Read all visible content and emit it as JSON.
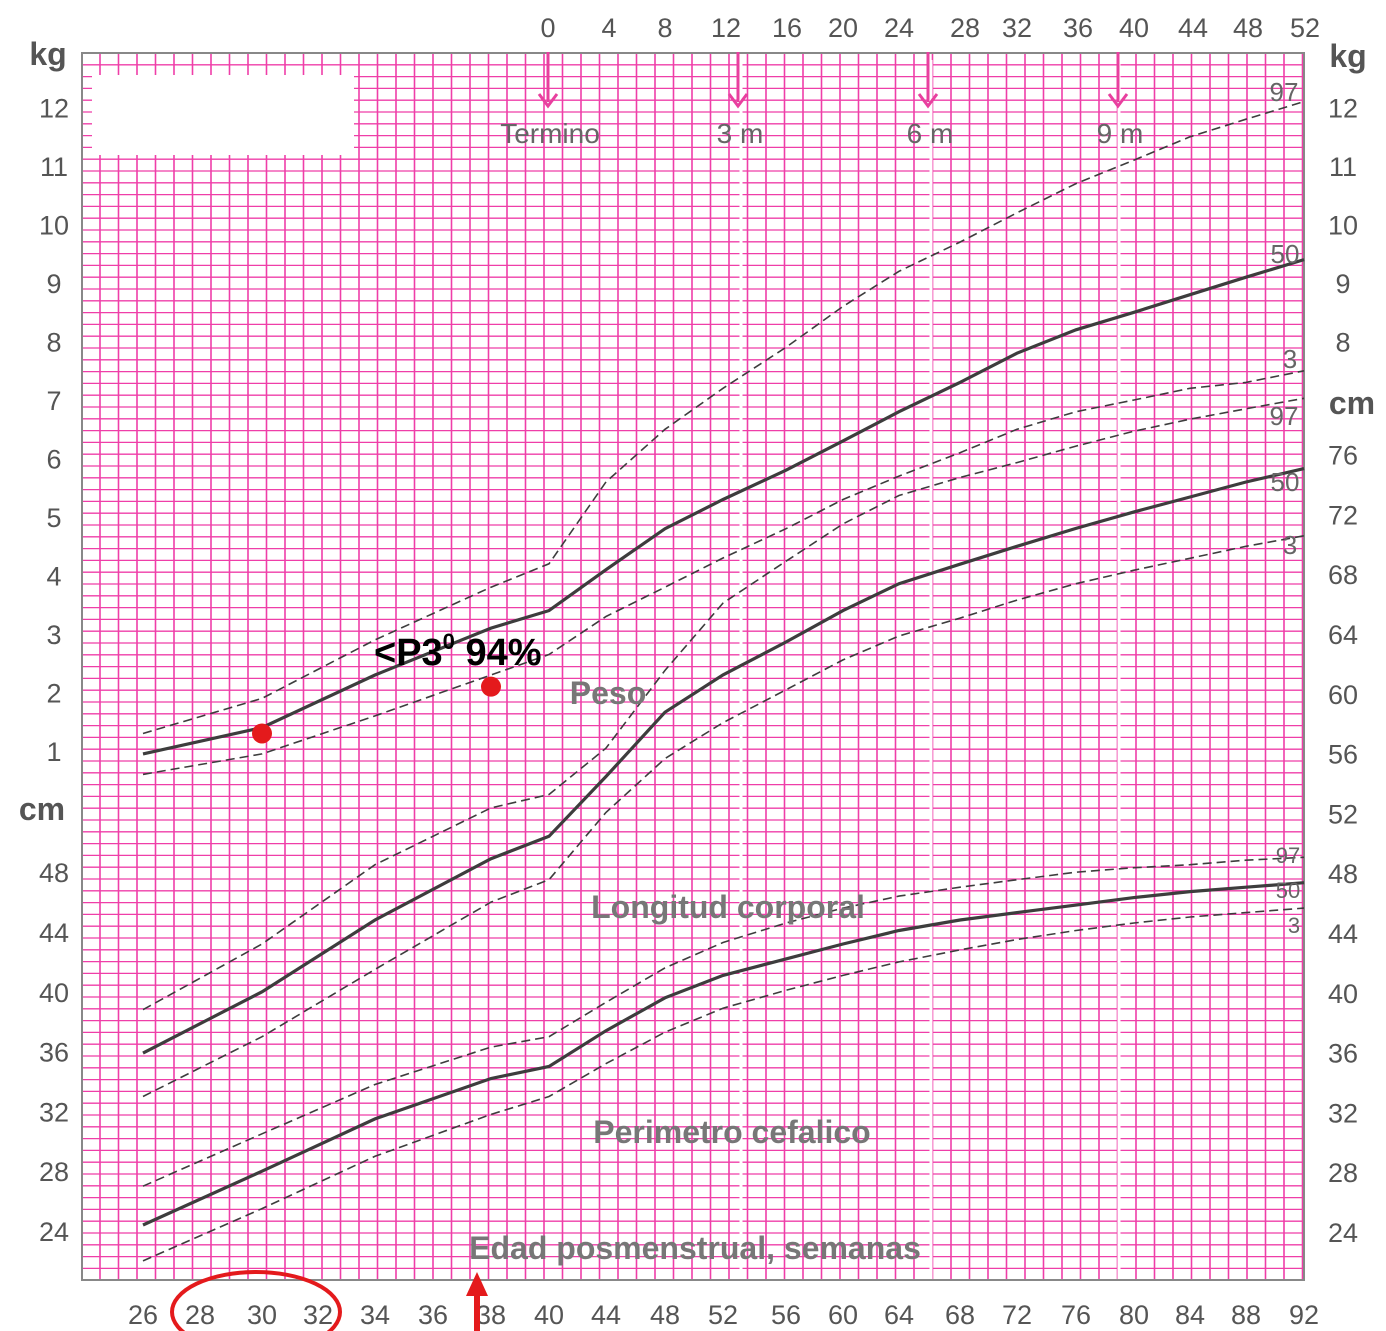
{
  "chart_data": {
    "type": "line",
    "chart_kind": "Fenton-style preterm growth chart",
    "xlabel": "Edad  posmenstrual, semanas",
    "x_ticks_bottom": [
      "26",
      "28",
      "30",
      "32",
      "34",
      "36",
      "38",
      "40",
      "44",
      "48",
      "52",
      "56",
      "60",
      "64",
      "68",
      "72",
      "76",
      "80",
      "84",
      "88",
      "92"
    ],
    "x_ticks_top": [
      "0",
      "4",
      "8",
      "12",
      "16",
      "20",
      "24",
      "28",
      "32",
      "36",
      "40",
      "44",
      "48",
      "52"
    ],
    "age_markers": [
      "Termino",
      "3 m",
      "6 m",
      "9 m"
    ],
    "y_unit_labels": {
      "kg_left": "kg",
      "kg_right": "kg",
      "cm_left": "cm",
      "cm_right": "cm"
    },
    "kg_ticks_left": [
      "1",
      "2",
      "3",
      "4",
      "5",
      "6",
      "7",
      "8",
      "9",
      "10",
      "11",
      "12"
    ],
    "kg_ticks_right": [
      "8",
      "9",
      "10",
      "11",
      "12"
    ],
    "cm_ticks_left": [
      "24",
      "28",
      "32",
      "36",
      "40",
      "44",
      "48"
    ],
    "cm_ticks_right": [
      "24",
      "28",
      "32",
      "36",
      "40",
      "44",
      "48",
      "52",
      "56",
      "60",
      "64",
      "68",
      "72",
      "76"
    ],
    "section_labels": [
      "Peso",
      "Longitud corporal",
      "Perimetro cefalico"
    ],
    "percentile_labels": {
      "weight": [
        "97",
        "50",
        "3"
      ],
      "length": [
        "97",
        "50",
        "3"
      ],
      "head": [
        "97",
        "50",
        "3"
      ]
    },
    "annotation": {
      "prefix": "<P3",
      "sup": "0",
      "suffix": " 94%"
    },
    "series": [
      {
        "group": "weight",
        "percentile": "97",
        "style": "dashed",
        "unit": "kg",
        "points": [
          [
            26,
            1.3
          ],
          [
            30,
            1.9
          ],
          [
            34,
            2.9
          ],
          [
            38,
            3.8
          ],
          [
            40,
            4.2
          ],
          [
            44,
            5.6
          ],
          [
            48,
            6.5
          ],
          [
            52,
            7.2
          ],
          [
            56,
            7.9
          ],
          [
            60,
            8.6
          ],
          [
            64,
            9.2
          ],
          [
            68,
            9.7
          ],
          [
            72,
            10.2
          ],
          [
            76,
            10.7
          ],
          [
            80,
            11.1
          ],
          [
            84,
            11.5
          ],
          [
            88,
            11.8
          ],
          [
            92,
            12.1
          ]
        ]
      },
      {
        "group": "weight",
        "percentile": "50",
        "style": "solid",
        "unit": "kg",
        "points": [
          [
            26,
            0.95
          ],
          [
            30,
            1.4
          ],
          [
            34,
            2.3
          ],
          [
            38,
            3.1
          ],
          [
            40,
            3.4
          ],
          [
            44,
            4.1
          ],
          [
            48,
            4.8
          ],
          [
            52,
            5.3
          ],
          [
            56,
            5.8
          ],
          [
            60,
            6.3
          ],
          [
            64,
            6.8
          ],
          [
            68,
            7.3
          ],
          [
            72,
            7.8
          ],
          [
            76,
            8.2
          ],
          [
            80,
            8.5
          ],
          [
            84,
            8.8
          ],
          [
            88,
            9.1
          ],
          [
            92,
            9.4
          ]
        ]
      },
      {
        "group": "weight",
        "percentile": "3",
        "style": "dashed",
        "unit": "kg",
        "points": [
          [
            26,
            0.6
          ],
          [
            30,
            0.95
          ],
          [
            34,
            1.6
          ],
          [
            38,
            2.3
          ],
          [
            40,
            2.65
          ],
          [
            44,
            3.3
          ],
          [
            48,
            3.8
          ],
          [
            52,
            4.3
          ],
          [
            56,
            4.8
          ],
          [
            60,
            5.3
          ],
          [
            64,
            5.7
          ],
          [
            68,
            6.1
          ],
          [
            72,
            6.5
          ],
          [
            76,
            6.8
          ],
          [
            80,
            7.0
          ],
          [
            84,
            7.2
          ],
          [
            88,
            7.3
          ],
          [
            92,
            7.5
          ]
        ]
      },
      {
        "group": "length",
        "percentile": "97",
        "style": "dashed",
        "unit": "cm",
        "points": [
          [
            26,
            38.8
          ],
          [
            30,
            43.2
          ],
          [
            34,
            48.5
          ],
          [
            38,
            52.3
          ],
          [
            40,
            53.2
          ],
          [
            44,
            56.3
          ],
          [
            48,
            61.5
          ],
          [
            52,
            66.0
          ],
          [
            56,
            68.8
          ],
          [
            60,
            71.3
          ],
          [
            64,
            73.2
          ],
          [
            68,
            74.4
          ],
          [
            72,
            75.4
          ],
          [
            76,
            76.5
          ],
          [
            80,
            77.5
          ],
          [
            84,
            78.3
          ],
          [
            88,
            79.0
          ],
          [
            92,
            79.7
          ]
        ]
      },
      {
        "group": "length",
        "percentile": "50",
        "style": "solid",
        "unit": "cm",
        "points": [
          [
            26,
            35.9
          ],
          [
            30,
            40.0
          ],
          [
            34,
            44.8
          ],
          [
            38,
            48.9
          ],
          [
            40,
            50.4
          ],
          [
            44,
            54.4
          ],
          [
            48,
            58.7
          ],
          [
            52,
            61.2
          ],
          [
            56,
            63.4
          ],
          [
            60,
            65.5
          ],
          [
            64,
            67.3
          ],
          [
            68,
            68.6
          ],
          [
            72,
            69.8
          ],
          [
            76,
            71.0
          ],
          [
            80,
            72.1
          ],
          [
            84,
            73.1
          ],
          [
            88,
            74.1
          ],
          [
            92,
            75.0
          ]
        ]
      },
      {
        "group": "length",
        "percentile": "3",
        "style": "dashed",
        "unit": "cm",
        "points": [
          [
            26,
            33.0
          ],
          [
            30,
            37.0
          ],
          [
            34,
            41.5
          ],
          [
            38,
            46.0
          ],
          [
            40,
            47.5
          ],
          [
            44,
            52.0
          ],
          [
            48,
            55.6
          ],
          [
            52,
            58.0
          ],
          [
            56,
            60.2
          ],
          [
            60,
            62.2
          ],
          [
            64,
            63.8
          ],
          [
            68,
            65.0
          ],
          [
            72,
            66.2
          ],
          [
            76,
            67.3
          ],
          [
            80,
            68.2
          ],
          [
            84,
            69.0
          ],
          [
            88,
            69.8
          ],
          [
            92,
            70.5
          ]
        ]
      },
      {
        "group": "head",
        "percentile": "97",
        "style": "dashed",
        "unit": "cm",
        "points": [
          [
            26,
            27.0
          ],
          [
            30,
            30.5
          ],
          [
            34,
            33.8
          ],
          [
            38,
            36.3
          ],
          [
            40,
            37.0
          ],
          [
            44,
            39.3
          ],
          [
            48,
            41.6
          ],
          [
            52,
            43.3
          ],
          [
            56,
            44.6
          ],
          [
            60,
            45.6
          ],
          [
            64,
            46.4
          ],
          [
            68,
            47.0
          ],
          [
            72,
            47.5
          ],
          [
            76,
            48.0
          ],
          [
            80,
            48.3
          ],
          [
            84,
            48.5
          ],
          [
            88,
            48.8
          ],
          [
            92,
            49.0
          ]
        ]
      },
      {
        "group": "head",
        "percentile": "50",
        "style": "solid",
        "unit": "cm",
        "points": [
          [
            26,
            24.4
          ],
          [
            30,
            28.0
          ],
          [
            34,
            31.5
          ],
          [
            38,
            34.2
          ],
          [
            40,
            35.0
          ],
          [
            44,
            37.4
          ],
          [
            48,
            39.6
          ],
          [
            52,
            41.1
          ],
          [
            56,
            42.2
          ],
          [
            60,
            43.2
          ],
          [
            64,
            44.1
          ],
          [
            68,
            44.8
          ],
          [
            72,
            45.3
          ],
          [
            76,
            45.8
          ],
          [
            80,
            46.3
          ],
          [
            84,
            46.7
          ],
          [
            88,
            47.0
          ],
          [
            92,
            47.3
          ]
        ]
      },
      {
        "group": "head",
        "percentile": "3",
        "style": "dashed",
        "unit": "cm",
        "points": [
          [
            26,
            22.0
          ],
          [
            30,
            25.5
          ],
          [
            34,
            29.0
          ],
          [
            38,
            31.8
          ],
          [
            40,
            33.0
          ],
          [
            44,
            35.2
          ],
          [
            48,
            37.3
          ],
          [
            52,
            38.9
          ],
          [
            56,
            40.1
          ],
          [
            60,
            41.1
          ],
          [
            64,
            42.0
          ],
          [
            68,
            42.8
          ],
          [
            72,
            43.5
          ],
          [
            76,
            44.1
          ],
          [
            80,
            44.6
          ],
          [
            84,
            45.0
          ],
          [
            88,
            45.3
          ],
          [
            92,
            45.6
          ]
        ]
      }
    ],
    "patient_points": [
      {
        "x": 30,
        "y": 1.3,
        "unit": "kg",
        "color": "#e41a1c"
      },
      {
        "x": 38,
        "y": 2.1,
        "unit": "kg",
        "color": "#e41a1c"
      }
    ],
    "highlights": [
      {
        "shape": "ellipse",
        "around_x_ticks": [
          "28",
          "30",
          "32"
        ],
        "color": "#e41a1c"
      },
      {
        "shape": "arrow",
        "at_x": 38,
        "direction": "up",
        "color": "#e41a1c"
      }
    ],
    "colors": {
      "grid": "#ef3ea8",
      "curve": "#3d3d3d",
      "label_gray": "#777777",
      "marker_pink": "#e8409f",
      "patient": "#e41a1c"
    }
  }
}
